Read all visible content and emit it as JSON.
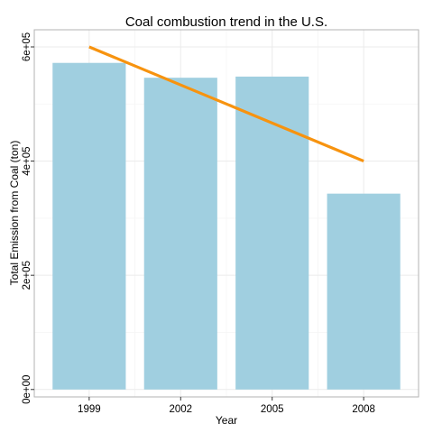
{
  "chart_data": {
    "type": "bar",
    "title": "Coal combustion trend in the U.S.",
    "xlabel": "Year",
    "ylabel": "Total Emission from Coal (ton)",
    "categories": [
      "1999",
      "2002",
      "2005",
      "2008"
    ],
    "values": [
      572000,
      546000,
      548000,
      343000
    ],
    "trend": {
      "type": "line",
      "from": 600000,
      "to": 400000
    },
    "ylim": [
      -13000,
      630000
    ],
    "yticks": [
      0,
      200000,
      400000,
      600000
    ],
    "ytick_labels": [
      "0e+00",
      "2e+05",
      "4e+05",
      "6e+05"
    ],
    "grid": true,
    "colors": {
      "bar": "#a0cfe0",
      "trend": "#f7930f",
      "grid": "#ebebeb",
      "panel_border": "#b3b3b3"
    }
  }
}
